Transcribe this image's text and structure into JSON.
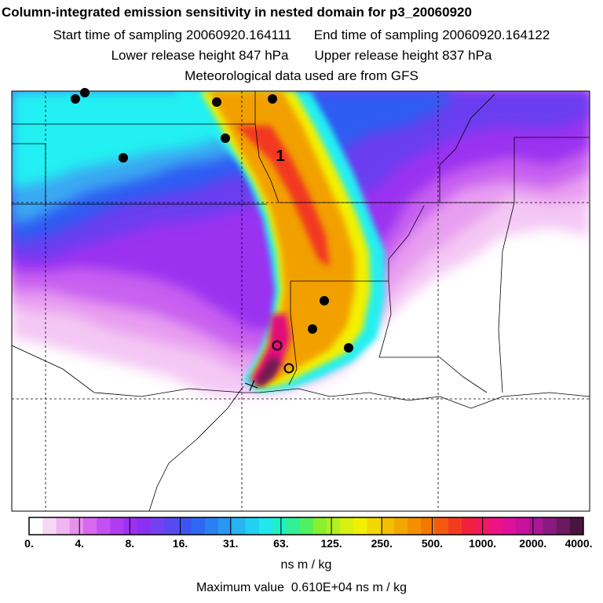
{
  "header": {
    "title": "Column-integrated emission sensitivity in nested domain for p3_20060920",
    "sampling_start_label": "Start time of sampling",
    "sampling_start": "20060920.164111",
    "sampling_end_label": "End time of sampling",
    "sampling_end": "20060920.164122",
    "lower_release_label": "Lower release height",
    "lower_release": "847 hPa",
    "upper_release_label": "Upper release height",
    "upper_release": "837 hPa",
    "met_data": "Meteorological data used are from GFS"
  },
  "map": {
    "release_label": "1",
    "colors": {
      "white": "#ffffff",
      "light_pink": "#f4c8f4",
      "pink": "#e89ef0",
      "magenta": "#c860f0",
      "violet": "#9a30f0",
      "purple_blue": "#6a3cf0",
      "blue": "#2e5cf2",
      "sky": "#3aa8f2",
      "cyan": "#20f0f2",
      "yellow": "#f2f000",
      "orange": "#f2a000",
      "red": "#f23820",
      "deep_pink": "#e0107a",
      "dark_magenta": "#6a1a50"
    }
  },
  "colorbar": {
    "ticks": [
      "0.",
      "4.",
      "8.",
      "16.",
      "31.",
      "63.",
      "125.",
      "250.",
      "500.",
      "1000.",
      "2000.",
      "4000."
    ],
    "swatches": [
      "#ffffff",
      "#f6d8f6",
      "#f0b4f0",
      "#e890ee",
      "#d868ee",
      "#c450f0",
      "#b03cf0",
      "#9a30f0",
      "#8a30f2",
      "#7440f2",
      "#5a48f2",
      "#3e54f2",
      "#2e68f2",
      "#2a80f2",
      "#2a98f2",
      "#26b4f2",
      "#22d0f2",
      "#20e8ec",
      "#20f0c8",
      "#30f098",
      "#50f060",
      "#88f030",
      "#b0f020",
      "#d8f010",
      "#f2f000",
      "#f2d800",
      "#f2c000",
      "#f2a800",
      "#f29000",
      "#f27800",
      "#f25a10",
      "#f23c20",
      "#f2203a",
      "#f01860",
      "#ec1480",
      "#e0109a",
      "#c8129c",
      "#a81894",
      "#8a1a80",
      "#6a1a60",
      "#4a1440"
    ],
    "units": "ns m / kg",
    "max_label": "Maximum value",
    "max_value": "0.610E+04 ns m / kg"
  }
}
